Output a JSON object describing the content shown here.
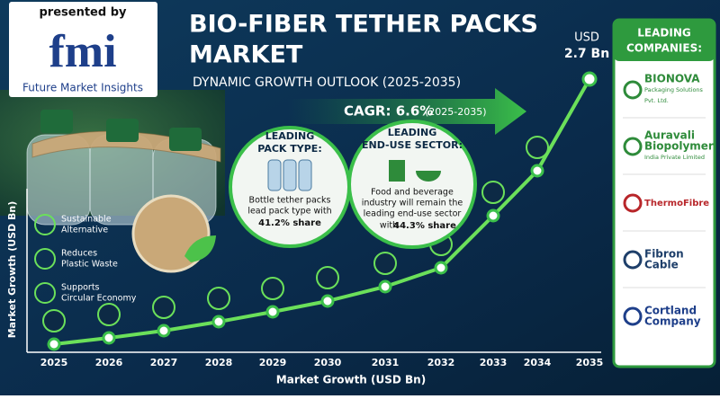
{
  "header": {
    "presented_by": "presented by",
    "logo": "fmi",
    "logo_sub": "Future Market Insights"
  },
  "title": "BIO-FIBER TETHER PACKS MARKET",
  "subtitle": "DYNAMIC GROWTH OUTLOOK (2025-2035)",
  "cagr": {
    "label": "CAGR: 6.6%",
    "period": "(2025-2035)"
  },
  "end_value": {
    "unit": "USD",
    "value": "2.7 Bn"
  },
  "pack_type": {
    "title_1": "LEADING",
    "title_2": "PACK TYPE:",
    "text_1": "Bottle tether packs",
    "text_2": "lead pack type with",
    "share": "41.2% share"
  },
  "end_use": {
    "title_1": "LEADING",
    "title_2": "END-USE SECTOR:",
    "text_1": "Food and beverage",
    "text_2": "industry will remain the",
    "text_3": "leading end-use sector",
    "text_4": "with",
    "share": "44.3% share"
  },
  "benefits": [
    [
      "Sustainable",
      "Alternative"
    ],
    [
      "Reduces",
      "Plastic Waste"
    ],
    [
      "Supports",
      "Circular Economy"
    ]
  ],
  "axis": {
    "y_label": "Market Growth (USD Bn)",
    "x_label": "Market Growth (USD Bn)",
    "years": [
      "2025",
      "2026",
      "2027",
      "2028",
      "2029",
      "2030",
      "2031",
      "2032",
      "2033",
      "2034",
      "2035"
    ]
  },
  "companies": {
    "title_1": "LEADING",
    "title_2": "COMPANIES:",
    "list": [
      {
        "name": "BIONOVA",
        "sub_1": "Packaging Solutions",
        "sub_2": "Pvt. Ltd."
      },
      {
        "name": "Auravali",
        "name_2": "Biopolymer",
        "sub_1": "India Private Limited"
      },
      {
        "name": "ThermoFibre"
      },
      {
        "name": "Fibron",
        "name_2": "Cable"
      },
      {
        "name": "Cortland",
        "name_2": "Company"
      }
    ]
  }
}
